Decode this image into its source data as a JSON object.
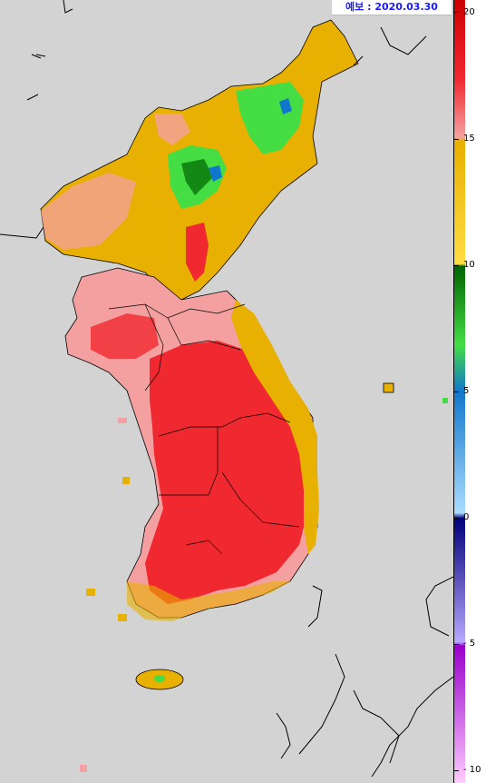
{
  "forecast": {
    "label": "예보 : 2020.03.30"
  },
  "legend": {
    "ticks": [
      "20",
      "15",
      "10",
      "5",
      "0",
      "- 5",
      "- 10"
    ],
    "colors": {
      "c20": "#cc0000",
      "c17": "#f02830",
      "c15": "#f4a0a0",
      "c14": "#e8b000",
      "c10": "#ffdd44",
      "c9": "#006400",
      "c7": "#44dd44",
      "c5": "#1177cc",
      "c2": "#aaddff",
      "c0": "#00007a",
      "cm5": "#b8a8ff",
      "cm6": "#9900cc",
      "cm10": "#ffccff"
    }
  },
  "map": {
    "background": "#d3d3d3",
    "outline_color": "#000000",
    "icons": [
      "korea-peninsula-map",
      "jeju-island",
      "ulleung-island",
      "japan-coastline",
      "china-coastline"
    ]
  }
}
